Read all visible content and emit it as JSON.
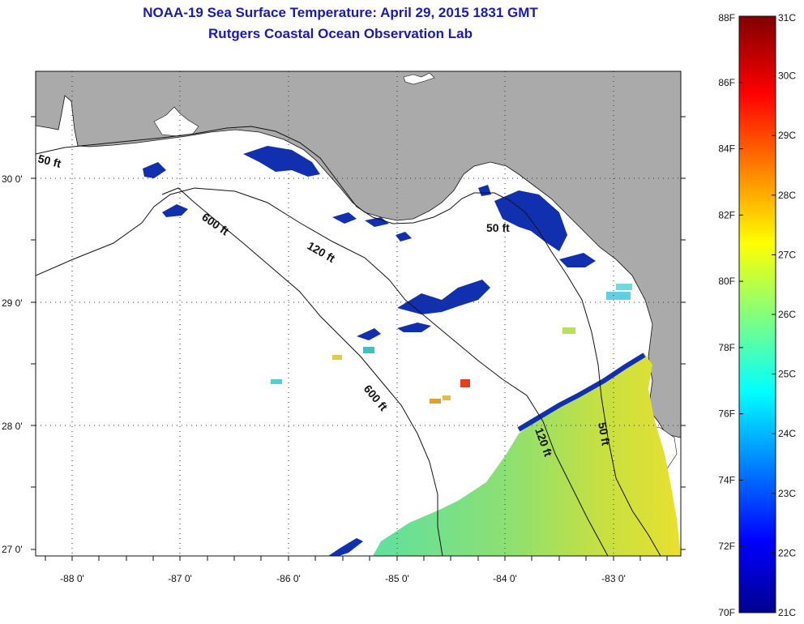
{
  "title": {
    "line1": "NOAA-19 Sea Surface Temperature:  April 29, 2015 1831 GMT",
    "line2": "Rutgers Coastal Ocean Observation Lab"
  },
  "map": {
    "lat_labels": [
      "30 0'",
      "29 0'",
      "28 0'",
      "27 0'"
    ],
    "lon_labels": [
      "-88 0'",
      "-87 0'",
      "-86 0'",
      "-85 0'",
      "-84 0'",
      "-83 0'"
    ],
    "contour_labels": [
      "50 ft",
      "600 ft",
      "120 ft",
      "50 ft",
      "600 ft",
      "120 ft",
      "50 ft"
    ],
    "colors": {
      "land": "#aaaaaa",
      "water": "#ffffff",
      "cold": "#1030b0",
      "warm": "#c8e040"
    }
  },
  "colorbar": {
    "f_labels": [
      "88F",
      "86F",
      "84F",
      "82F",
      "80F",
      "78F",
      "76F",
      "74F",
      "72F",
      "70F"
    ],
    "c_labels": [
      "31C",
      "30C",
      "29C",
      "28C",
      "27C",
      "26C",
      "25C",
      "24C",
      "23C",
      "22C",
      "21C"
    ],
    "range_f": [
      70,
      88
    ],
    "range_c": [
      21,
      31
    ]
  }
}
